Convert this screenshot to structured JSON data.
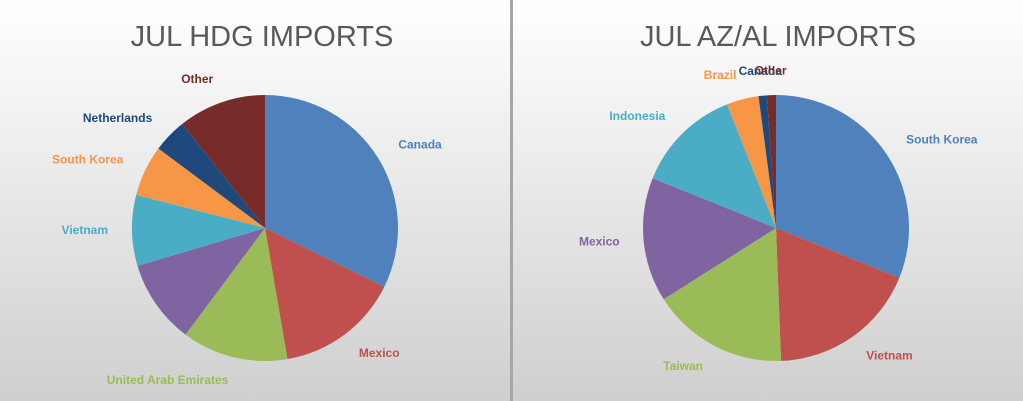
{
  "chart_data": [
    {
      "type": "pie",
      "title": "JUL HDG IMPORTS",
      "categories": [
        "Canada",
        "Mexico",
        "United Arab Emirates",
        null,
        "Vietnam",
        "South Korea",
        "Netherlands",
        "Other"
      ],
      "values": [
        32.3,
        15.0,
        12.9,
        10.2,
        8.6,
        6.2,
        4.1,
        10.7
      ],
      "colors": [
        "#4f81bd",
        "#c0504d",
        "#9bbb59",
        "#8064a2",
        "#4bacc6",
        "#f79646",
        "#1f497d",
        "#772c2a"
      ]
    },
    {
      "type": "pie",
      "title": "JUL AZ/AL IMPORTS",
      "categories": [
        "South Korea",
        "Vietnam",
        "Taiwan",
        "Mexico",
        "Indonesia",
        "Brazil",
        "Canada",
        "Other"
      ],
      "values": [
        31.1,
        18.3,
        16.6,
        15.1,
        12.9,
        3.9,
        1.0,
        1.1
      ],
      "colors": [
        "#4f81bd",
        "#c0504d",
        "#9bbb59",
        "#8064a2",
        "#4bacc6",
        "#f79646",
        "#1f497d",
        "#772c2a"
      ]
    }
  ]
}
